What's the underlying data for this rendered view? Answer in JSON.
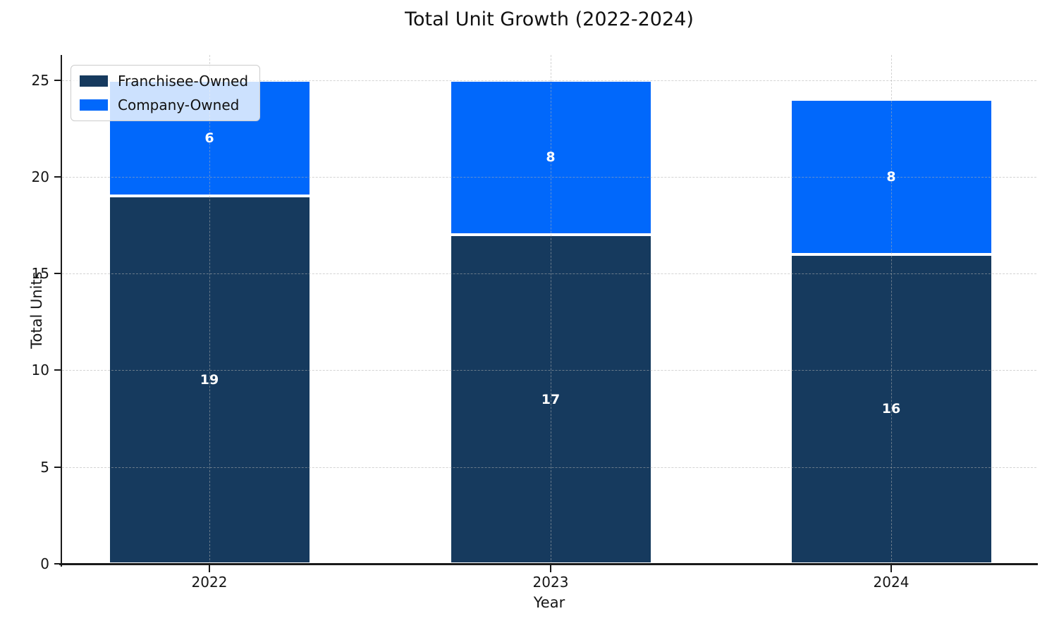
{
  "chart_data": {
    "type": "bar",
    "stacked": true,
    "title": "Total Unit Growth (2022-2024)",
    "xlabel": "Year",
    "ylabel": "Total Units",
    "categories": [
      "2022",
      "2023",
      "2024"
    ],
    "series": [
      {
        "name": "Franchisee-Owned",
        "color": "#163a5e",
        "values": [
          19,
          17,
          16
        ]
      },
      {
        "name": "Company-Owned",
        "color": "#0168fb",
        "values": [
          6,
          8,
          8
        ]
      }
    ],
    "totals": [
      25,
      25,
      24
    ],
    "ylim": [
      0,
      26.3
    ],
    "yticks": [
      0,
      5,
      10,
      15,
      20,
      25
    ],
    "grid": true,
    "grid_style": "dashed",
    "legend_position": "upper left",
    "bar_labels_shown": true,
    "bar_label_color": "#ffffff",
    "bar_edge_color": "#ffffff",
    "text_color": "#111111"
  }
}
